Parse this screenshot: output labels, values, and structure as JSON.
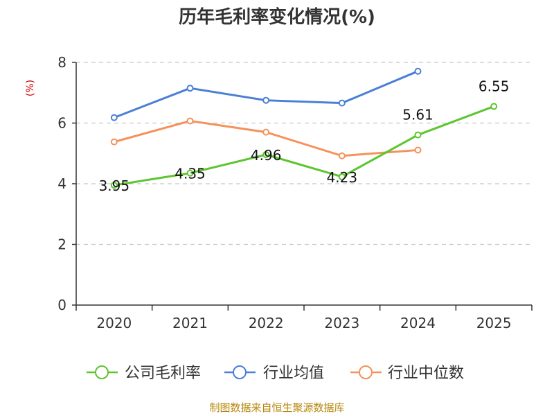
{
  "chart_data": {
    "type": "line",
    "title": "历年毛利率变化情况(%)",
    "ylabel": "(%)",
    "xlabel": "",
    "ylim": [
      0,
      8
    ],
    "yticks": [
      0,
      2,
      4,
      6,
      8
    ],
    "grid": true,
    "categories": [
      "2020",
      "2021",
      "2022",
      "2023",
      "2024",
      "2025"
    ],
    "series": [
      {
        "name": "公司毛利率",
        "color": "#5dc52e",
        "values": [
          3.95,
          4.35,
          4.96,
          4.23,
          5.61,
          6.55
        ],
        "labels": [
          "3.95",
          "4.35",
          "4.96",
          "4.23",
          "5.61",
          "6.55"
        ]
      },
      {
        "name": "行业均值",
        "color": "#4a7fd6",
        "values": [
          6.18,
          7.15,
          6.75,
          6.66,
          7.71,
          null
        ]
      },
      {
        "name": "行业中位数",
        "color": "#f5915a",
        "values": [
          5.38,
          6.07,
          5.7,
          4.92,
          5.11,
          null
        ]
      }
    ],
    "legend_position": "bottom"
  },
  "footer": {
    "source": "制图数据来自恒生聚源数据库"
  }
}
